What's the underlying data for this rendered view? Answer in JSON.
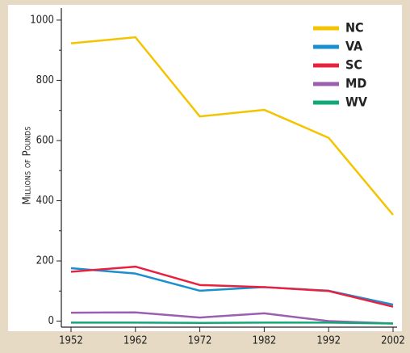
{
  "chart_data": {
    "type": "line",
    "ylabel": "Millions of Pounds",
    "x": [
      1952,
      1962,
      1972,
      1982,
      1992,
      2002
    ],
    "xlim": [
      1952,
      2002
    ],
    "xticks": [
      1952,
      1962,
      1972,
      1982,
      1992,
      2002
    ],
    "ylim": [
      -20,
      1040
    ],
    "yticks": [
      0,
      200,
      400,
      600,
      800,
      1000
    ],
    "yminorticks": [
      100,
      300,
      500,
      700,
      900
    ],
    "legend": "top-right",
    "series": [
      {
        "name": "NC",
        "color": "#f5c400",
        "values": [
          923,
          943,
          680,
          702,
          609,
          353
        ]
      },
      {
        "name": "VA",
        "color": "#1a8fd0",
        "values": [
          176,
          158,
          101,
          113,
          101,
          55
        ]
      },
      {
        "name": "SC",
        "color": "#e8213f",
        "values": [
          164,
          181,
          120,
          113,
          100,
          48
        ]
      },
      {
        "name": "MD",
        "color": "#9b5fb0",
        "values": [
          28,
          29,
          12,
          26,
          0,
          -8
        ]
      },
      {
        "name": "WV",
        "color": "#10a878",
        "values": [
          -5,
          -5,
          -6,
          -5,
          -5,
          -8
        ]
      }
    ]
  }
}
